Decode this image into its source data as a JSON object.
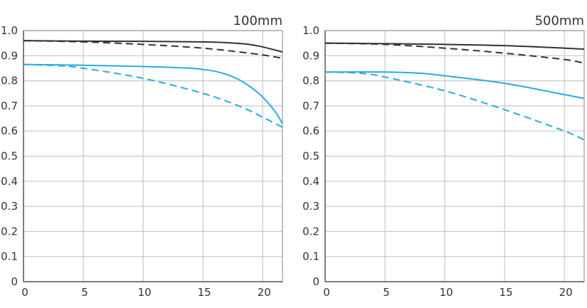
{
  "chart_data": [
    {
      "type": "line",
      "title": "100mm",
      "xlabel": "",
      "ylabel": "",
      "xlim": [
        0,
        21.65
      ],
      "ylim": [
        0,
        1.0
      ],
      "xticks": [
        "0",
        "5",
        "10",
        "15",
        "20"
      ],
      "yticks": [
        "0",
        "0.1",
        "0.2",
        "0.3",
        "0.4",
        "0.5",
        "0.6",
        "0.7",
        "0.8",
        "0.9",
        "1.0"
      ],
      "grid": true,
      "series": [
        {
          "name": "black-solid",
          "color": "#333333",
          "dashed": false,
          "x": [
            0,
            5,
            10,
            15,
            17,
            18,
            19,
            20,
            21,
            21.65
          ],
          "y": [
            0.96,
            0.958,
            0.957,
            0.955,
            0.952,
            0.949,
            0.944,
            0.935,
            0.923,
            0.915
          ]
        },
        {
          "name": "black-dashed",
          "color": "#333333",
          "dashed": true,
          "x": [
            0,
            5,
            10,
            15,
            18,
            20,
            21.65
          ],
          "y": [
            0.96,
            0.955,
            0.945,
            0.93,
            0.915,
            0.903,
            0.89
          ]
        },
        {
          "name": "blue-solid",
          "color": "#29abe2",
          "dashed": false,
          "x": [
            0,
            5,
            10,
            14,
            15,
            16,
            17,
            18,
            19,
            20,
            21,
            21.65
          ],
          "y": [
            0.865,
            0.862,
            0.857,
            0.85,
            0.845,
            0.838,
            0.825,
            0.805,
            0.775,
            0.735,
            0.68,
            0.63
          ]
        },
        {
          "name": "blue-dashed",
          "color": "#29abe2",
          "dashed": true,
          "x": [
            0,
            3,
            5,
            10,
            15,
            18,
            20,
            21.65
          ],
          "y": [
            0.865,
            0.86,
            0.85,
            0.81,
            0.75,
            0.7,
            0.655,
            0.615
          ]
        }
      ]
    },
    {
      "type": "line",
      "title": "500mm",
      "xlabel": "",
      "ylabel": "",
      "xlim": [
        0,
        21.65
      ],
      "ylim": [
        0,
        1.0
      ],
      "xticks": [
        "0",
        "5",
        "10",
        "15",
        "20"
      ],
      "yticks": [
        "0",
        "0.1",
        "0.2",
        "0.3",
        "0.4",
        "0.5",
        "0.6",
        "0.7",
        "0.8",
        "0.9",
        "1.0"
      ],
      "grid": true,
      "series": [
        {
          "name": "black-solid",
          "color": "#333333",
          "dashed": false,
          "x": [
            0,
            5,
            10,
            15,
            20,
            21.65
          ],
          "y": [
            0.95,
            0.948,
            0.945,
            0.94,
            0.93,
            0.926
          ]
        },
        {
          "name": "black-dashed",
          "color": "#333333",
          "dashed": true,
          "x": [
            0,
            5,
            10,
            15,
            20,
            21.65
          ],
          "y": [
            0.95,
            0.945,
            0.93,
            0.91,
            0.885,
            0.87
          ]
        },
        {
          "name": "blue-solid",
          "color": "#29abe2",
          "dashed": false,
          "x": [
            0,
            5,
            8,
            10,
            15,
            20,
            21.65
          ],
          "y": [
            0.835,
            0.835,
            0.83,
            0.82,
            0.79,
            0.745,
            0.73
          ]
        },
        {
          "name": "blue-dashed",
          "color": "#29abe2",
          "dashed": true,
          "x": [
            0,
            3,
            5,
            10,
            15,
            20,
            21.65
          ],
          "y": [
            0.835,
            0.83,
            0.815,
            0.76,
            0.685,
            0.6,
            0.565
          ]
        }
      ]
    }
  ]
}
